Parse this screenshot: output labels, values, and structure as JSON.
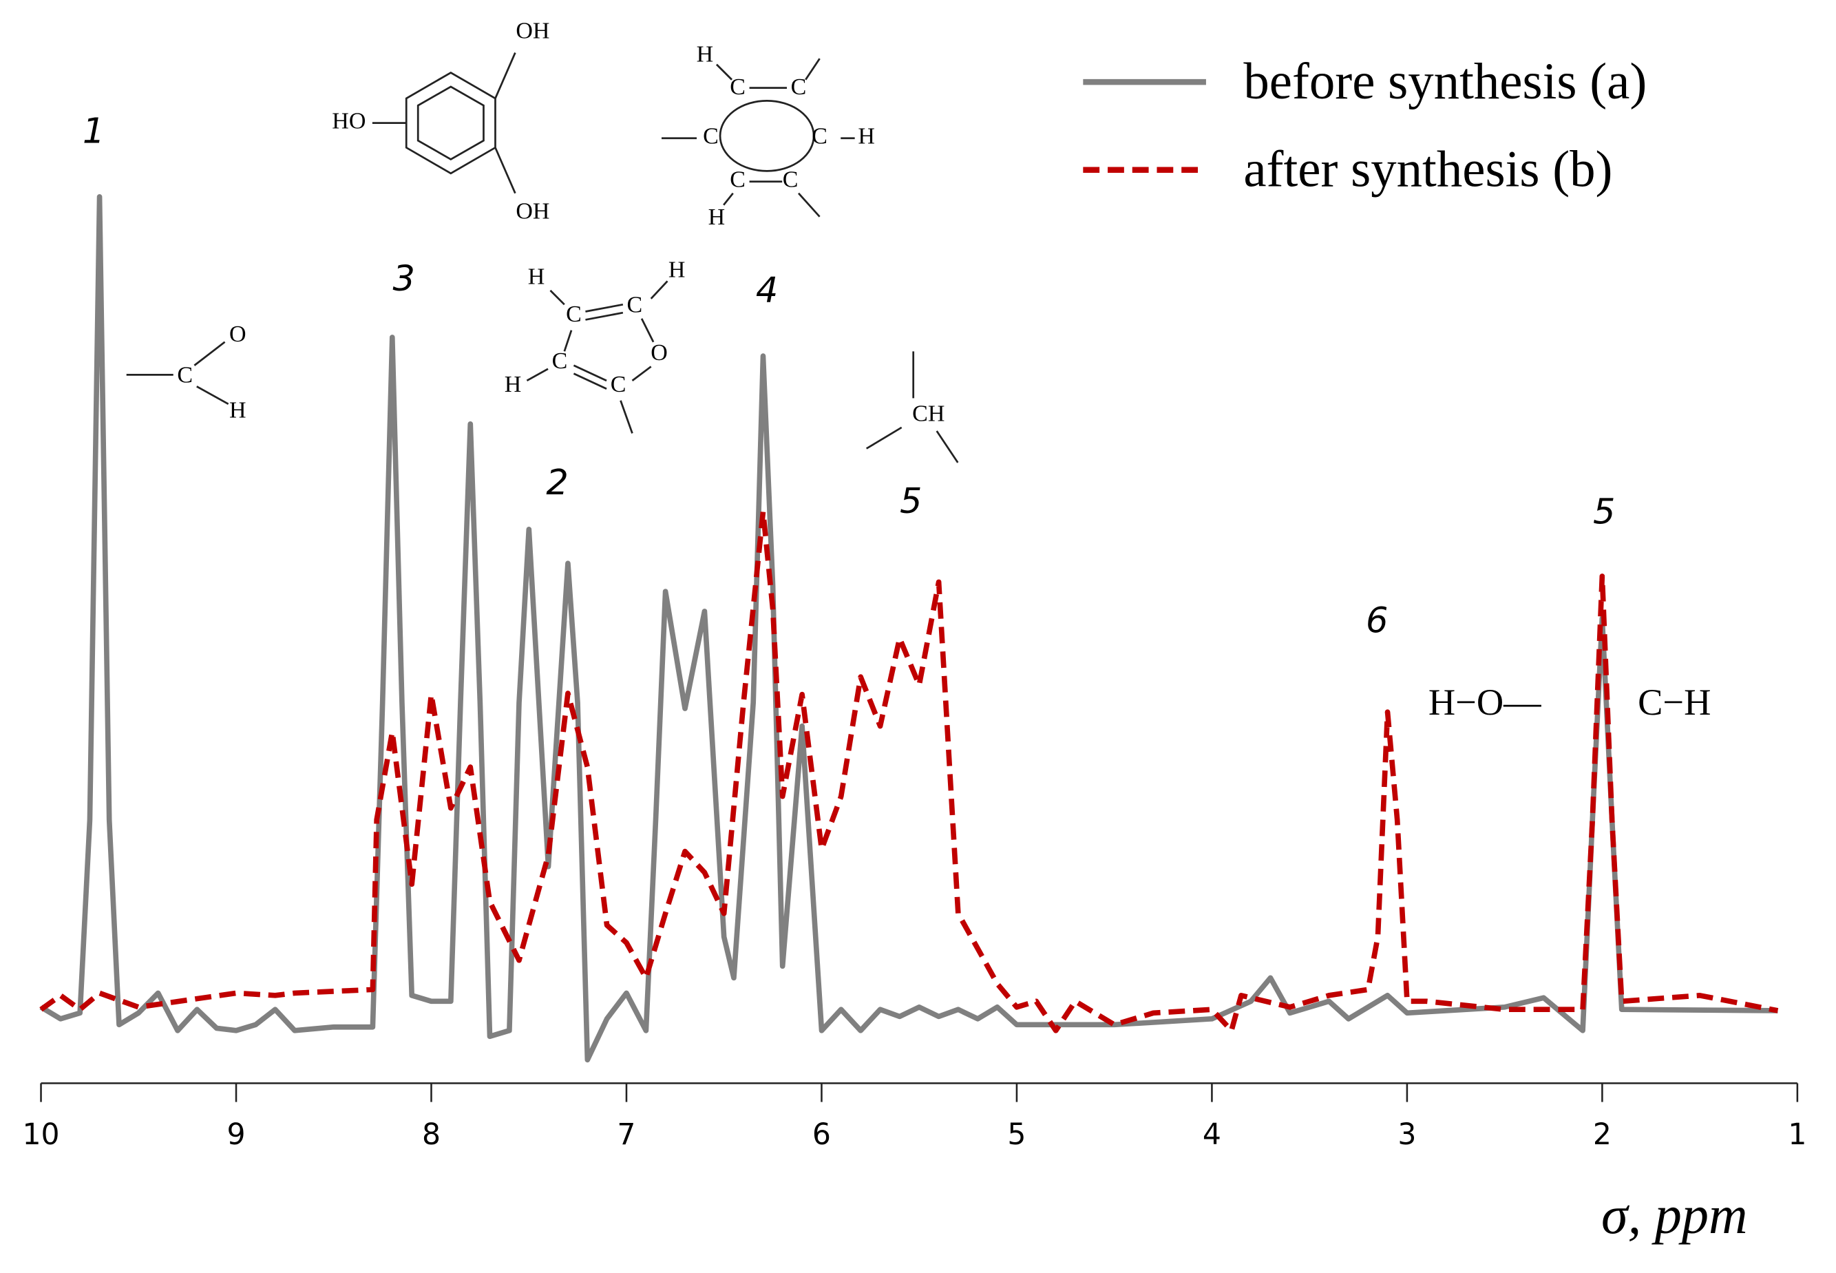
{
  "chart_data": {
    "type": "line",
    "xlabel": "σ, ppm",
    "xlim": [
      10,
      1
    ],
    "xticks": [
      10,
      9,
      8,
      7,
      6,
      5,
      4,
      3,
      2,
      1
    ],
    "ylim": [
      0,
      800
    ],
    "legend": "top-right",
    "series": [
      {
        "name": "before synthesis (a)",
        "color": "#808080",
        "dash": "solid",
        "x": [
          10,
          9.9,
          9.8,
          9.75,
          9.7,
          9.65,
          9.6,
          9.5,
          9.4,
          9.3,
          9.2,
          9.1,
          9.0,
          8.9,
          8.8,
          8.7,
          8.5,
          8.3,
          8.25,
          8.2,
          8.15,
          8.1,
          8.0,
          7.9,
          7.85,
          7.8,
          7.75,
          7.7,
          7.6,
          7.55,
          7.5,
          7.4,
          7.3,
          7.25,
          7.2,
          7.1,
          7.0,
          6.9,
          6.85,
          6.8,
          6.7,
          6.6,
          6.5,
          6.45,
          6.35,
          6.3,
          6.25,
          6.2,
          6.1,
          6.0,
          5.9,
          5.8,
          5.7,
          5.6,
          5.5,
          5.4,
          5.3,
          5.2,
          5.1,
          5.0,
          4.5,
          4.0,
          3.8,
          3.7,
          3.6,
          3.4,
          3.3,
          3.1,
          3.0,
          2.5,
          2.3,
          2.1,
          2.05,
          2.0,
          1.95,
          1.9,
          1.1
        ],
        "values": [
          65,
          55,
          60,
          225,
          757,
          225,
          50,
          60,
          77,
          45,
          63,
          47,
          45,
          50,
          63,
          45,
          48,
          48,
          325,
          637,
          325,
          75,
          70,
          70,
          325,
          563,
          325,
          40,
          45,
          325,
          473,
          185,
          444,
          325,
          20,
          55,
          77,
          45,
          225,
          420,
          320,
          403,
          125,
          90,
          325,
          621,
          425,
          100,
          305,
          45,
          63,
          45,
          63,
          57,
          65,
          57,
          63,
          55,
          65,
          50,
          50,
          55,
          70,
          90,
          60,
          70,
          55,
          75,
          60,
          65,
          73,
          45,
          225,
          397,
          225,
          63,
          62
        ]
      },
      {
        "name": "after synthesis (b)",
        "color": "#c00000",
        "dash": "dashed",
        "x": [
          10,
          9.9,
          9.8,
          9.7,
          9.5,
          9.0,
          8.8,
          8.7,
          8.3,
          8.28,
          8.2,
          8.1,
          8.0,
          7.9,
          7.8,
          7.7,
          7.55,
          7.4,
          7.3,
          7.2,
          7.1,
          7.0,
          6.9,
          6.8,
          6.7,
          6.6,
          6.5,
          6.4,
          6.3,
          6.25,
          6.2,
          6.1,
          6.0,
          5.9,
          5.8,
          5.7,
          5.6,
          5.5,
          5.4,
          5.3,
          5.2,
          5.1,
          5.0,
          4.9,
          4.8,
          4.7,
          4.5,
          4.3,
          4.0,
          3.9,
          3.85,
          3.6,
          3.4,
          3.2,
          3.15,
          3.1,
          3.05,
          3.0,
          2.9,
          2.5,
          2.1,
          2.05,
          2.0,
          1.95,
          1.9,
          1.5,
          1.1
        ],
        "values": [
          63,
          75,
          63,
          77,
          65,
          77,
          75,
          77,
          80,
          225,
          300,
          170,
          332,
          235,
          270,
          155,
          105,
          195,
          333,
          270,
          135,
          120,
          90,
          145,
          198,
          180,
          145,
          325,
          488,
          405,
          245,
          332,
          200,
          245,
          347,
          305,
          380,
          340,
          428,
          145,
          115,
          85,
          65,
          70,
          45,
          70,
          50,
          60,
          63,
          45,
          75,
          65,
          75,
          80,
          125,
          317,
          225,
          70,
          70,
          63,
          63,
          225,
          433,
          225,
          70,
          75,
          62
        ]
      }
    ],
    "annotations": [
      "1",
      "3",
      "2",
      "4",
      "5",
      "6",
      "5"
    ],
    "structures": [
      {
        "labels": [
          "OH",
          "HO",
          "OH"
        ]
      },
      {
        "labels": [
          "H",
          "C",
          "C",
          "C",
          "C",
          "H",
          "C",
          "C",
          "H"
        ]
      },
      {
        "labels": [
          "C",
          "O",
          "H"
        ]
      },
      {
        "labels": [
          "H",
          "C",
          "C",
          "H",
          "H",
          "C",
          "C",
          "O"
        ]
      },
      {
        "labels": [
          "CH"
        ]
      },
      {
        "labels": [
          "H−O—"
        ]
      },
      {
        "labels": [
          "C−H"
        ]
      }
    ]
  }
}
